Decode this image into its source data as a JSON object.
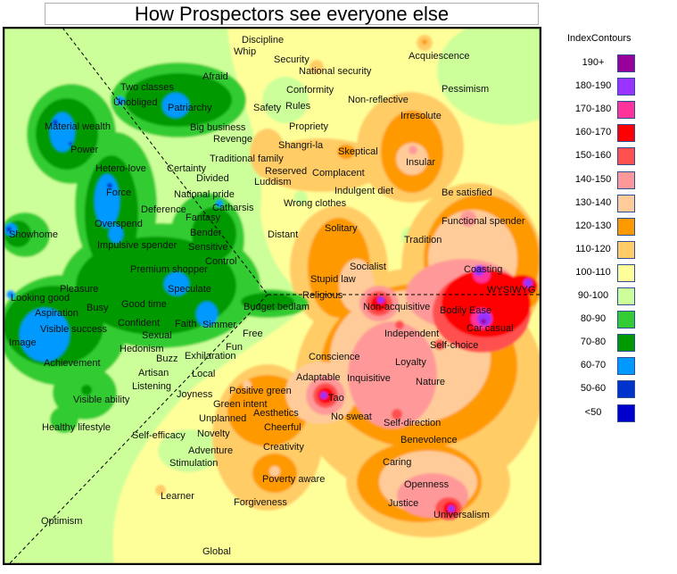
{
  "chart_data": {
    "type": "heatmap",
    "title": "How Prospectors see everyone else",
    "legend": {
      "title": "IndexContours",
      "placement": "right",
      "items": [
        {
          "label": "190+",
          "color": "#990099"
        },
        {
          "label": "180-190",
          "color": "#9933ff"
        },
        {
          "label": "170-180",
          "color": "#ff3399"
        },
        {
          "label": "160-170",
          "color": "#ff0000"
        },
        {
          "label": "150-160",
          "color": "#ff5050"
        },
        {
          "label": "140-150",
          "color": "#ff9999"
        },
        {
          "label": "130-140",
          "color": "#ffcc99"
        },
        {
          "label": "120-130",
          "color": "#ff9900"
        },
        {
          "label": "110-120",
          "color": "#ffcc66"
        },
        {
          "label": "100-110",
          "color": "#ffff99"
        },
        {
          "label": "90-100",
          "color": "#ccff99"
        },
        {
          "label": "80-90",
          "color": "#33cc33"
        },
        {
          "label": "70-80",
          "color": "#009900"
        },
        {
          "label": "60-70",
          "color": "#0099ff"
        },
        {
          "label": "50-60",
          "color": "#0033cc"
        },
        {
          "label": "<50",
          "color": "#0000cc"
        }
      ]
    },
    "labels": [
      "Discipline",
      "Whip",
      "Security",
      "National security",
      "Acquiescence",
      "Afraid",
      "Conformity",
      "Non-reflective",
      "Pessimism",
      "Two classes",
      "Unobliged",
      "Patriarchy",
      "Safety",
      "Rules",
      "Irresolute",
      "Material wealth",
      "Propriety",
      "Big business",
      "Revenge",
      "Shangri-la",
      "Skeptical",
      "Power",
      "Traditional family",
      "Insular",
      "Reserved",
      "Complacent",
      "Hetero-love",
      "Certainty",
      "Divided",
      "Luddism",
      "Indulgent diet",
      "Be satisfied",
      "Force",
      "National pride",
      "Deference",
      "Wrong clothes",
      "Catharsis",
      "Fantasy",
      "Functional spender",
      "Overspend",
      "Solitary",
      "Showhome",
      "Bender",
      "Distant",
      "Tradition",
      "Impulsive spender",
      "Sensitive",
      "Control",
      "Socialist",
      "Coasting",
      "Premium shopper",
      "Stupid law",
      "Pleasure",
      "Speculate",
      "WYSIWYG",
      "Looking good",
      "Religious",
      "Busy",
      "Good time",
      "Budget bedlam",
      "Non-acquisitive",
      "Bodily Ease",
      "Aspiration",
      "Confident",
      "Faith",
      "Simmer",
      "Visible success",
      "Car casual",
      "Free",
      "Sexual",
      "Independent",
      "Image",
      "Self-choice",
      "Hedonism",
      "Fun",
      "Buzz",
      "Exhilaration",
      "Conscience",
      "Achievement",
      "Loyalty",
      "Artisan",
      "Local",
      "Adaptable",
      "Inquisitive",
      "Nature",
      "Listening",
      "Positive green",
      "Joyness",
      "Tao",
      "Green intent",
      "Visible ability",
      "No sweat",
      "Aesthetics",
      "Self-direction",
      "Unplanned",
      "Cheerful",
      "Healthy lifestyle",
      "Self-efficacy",
      "Novelty",
      "Benevolence",
      "Creativity",
      "Adventure",
      "Stimulation",
      "Caring",
      "Poverty aware",
      "Openness",
      "Learner",
      "Justice",
      "Forgiveness",
      "Universalism",
      "Optimism",
      "Global"
    ]
  }
}
